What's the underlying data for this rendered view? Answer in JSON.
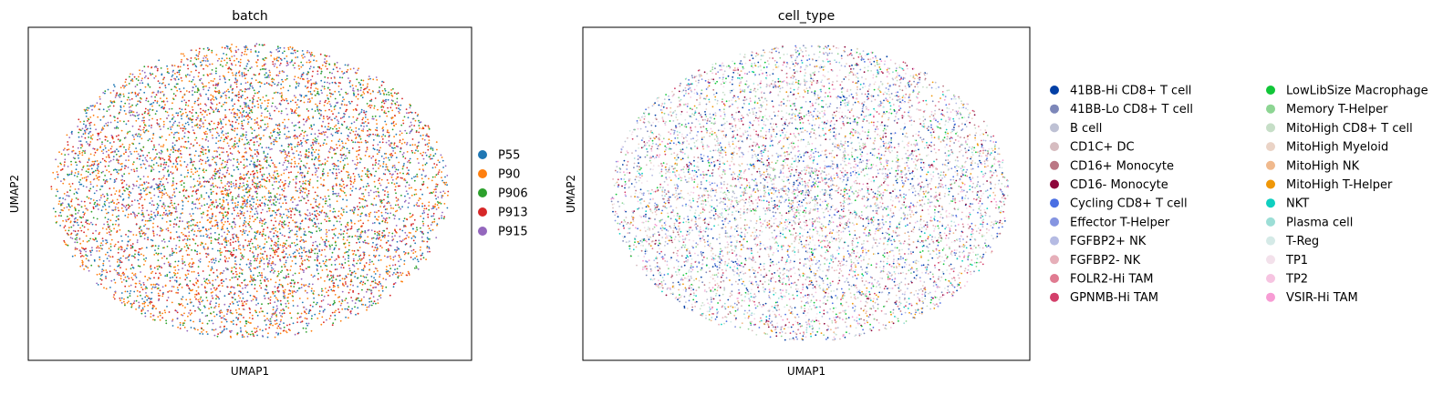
{
  "chart_data": [
    {
      "type": "scatter",
      "title": "batch",
      "xlabel": "UMAP1",
      "ylabel": "UMAP2",
      "grid": false,
      "ticks": false,
      "legend_placement": "right",
      "legend_columns": 1,
      "point_distribution": "dense elliptical cloud, categories intermixed",
      "series": [
        {
          "name": "P55",
          "color": "#1f77b4",
          "weight": 1.0
        },
        {
          "name": "P90",
          "color": "#ff7f0e",
          "weight": 1.6
        },
        {
          "name": "P906",
          "color": "#2ca02c",
          "weight": 0.7
        },
        {
          "name": "P913",
          "color": "#d62728",
          "weight": 0.9
        },
        {
          "name": "P915",
          "color": "#9467bd",
          "weight": 0.8
        }
      ]
    },
    {
      "type": "scatter",
      "title": "cell_type",
      "xlabel": "UMAP1",
      "ylabel": "UMAP2",
      "grid": false,
      "ticks": false,
      "legend_placement": "right",
      "legend_columns": 2,
      "point_distribution": "dense elliptical cloud, categories intermixed",
      "series": [
        {
          "name": "41BB-Hi CD8+ T cell",
          "color": "#023fa5",
          "weight": 1.2
        },
        {
          "name": "41BB-Lo CD8+ T cell",
          "color": "#7d87b9",
          "weight": 1.0
        },
        {
          "name": "B cell",
          "color": "#bec1d4",
          "weight": 1.0
        },
        {
          "name": "CD1C+ DC",
          "color": "#d6bcc0",
          "weight": 0.8
        },
        {
          "name": "CD16+ Monocyte",
          "color": "#bb7784",
          "weight": 0.8
        },
        {
          "name": "CD16- Monocyte",
          "color": "#8e063b",
          "weight": 0.6
        },
        {
          "name": "Cycling CD8+ T cell",
          "color": "#4a6fe3",
          "weight": 0.8
        },
        {
          "name": "Effector T-Helper",
          "color": "#8595e1",
          "weight": 0.9
        },
        {
          "name": "FGFBP2+ NK",
          "color": "#b5bbe3",
          "weight": 0.9
        },
        {
          "name": "FGFBP2- NK",
          "color": "#e6afb9",
          "weight": 0.8
        },
        {
          "name": "FOLR2-Hi TAM",
          "color": "#e07b91",
          "weight": 0.6
        },
        {
          "name": "GPNMB-Hi TAM",
          "color": "#d33f6a",
          "weight": 0.6
        },
        {
          "name": "LowLibSize Macrophage",
          "color": "#11c638",
          "weight": 0.6
        },
        {
          "name": "Memory T-Helper",
          "color": "#8dd593",
          "weight": 0.8
        },
        {
          "name": "MitoHigh CD8+ T cell",
          "color": "#c6dec7",
          "weight": 0.9
        },
        {
          "name": "MitoHigh Myeloid",
          "color": "#ead3c6",
          "weight": 0.8
        },
        {
          "name": "MitoHigh NK",
          "color": "#f0b98d",
          "weight": 0.6
        },
        {
          "name": "MitoHigh T-Helper",
          "color": "#ef9708",
          "weight": 0.5
        },
        {
          "name": "NKT",
          "color": "#0fcfc0",
          "weight": 0.5
        },
        {
          "name": "Plasma cell",
          "color": "#9cded6",
          "weight": 0.6
        },
        {
          "name": "T-Reg",
          "color": "#d5eae7",
          "weight": 0.9
        },
        {
          "name": "TP1",
          "color": "#f3e1eb",
          "weight": 1.0
        },
        {
          "name": "TP2",
          "color": "#f6c4e1",
          "weight": 0.9
        },
        {
          "name": "VSIR-Hi TAM",
          "color": "#f79cd4",
          "weight": 0.6
        }
      ]
    }
  ]
}
